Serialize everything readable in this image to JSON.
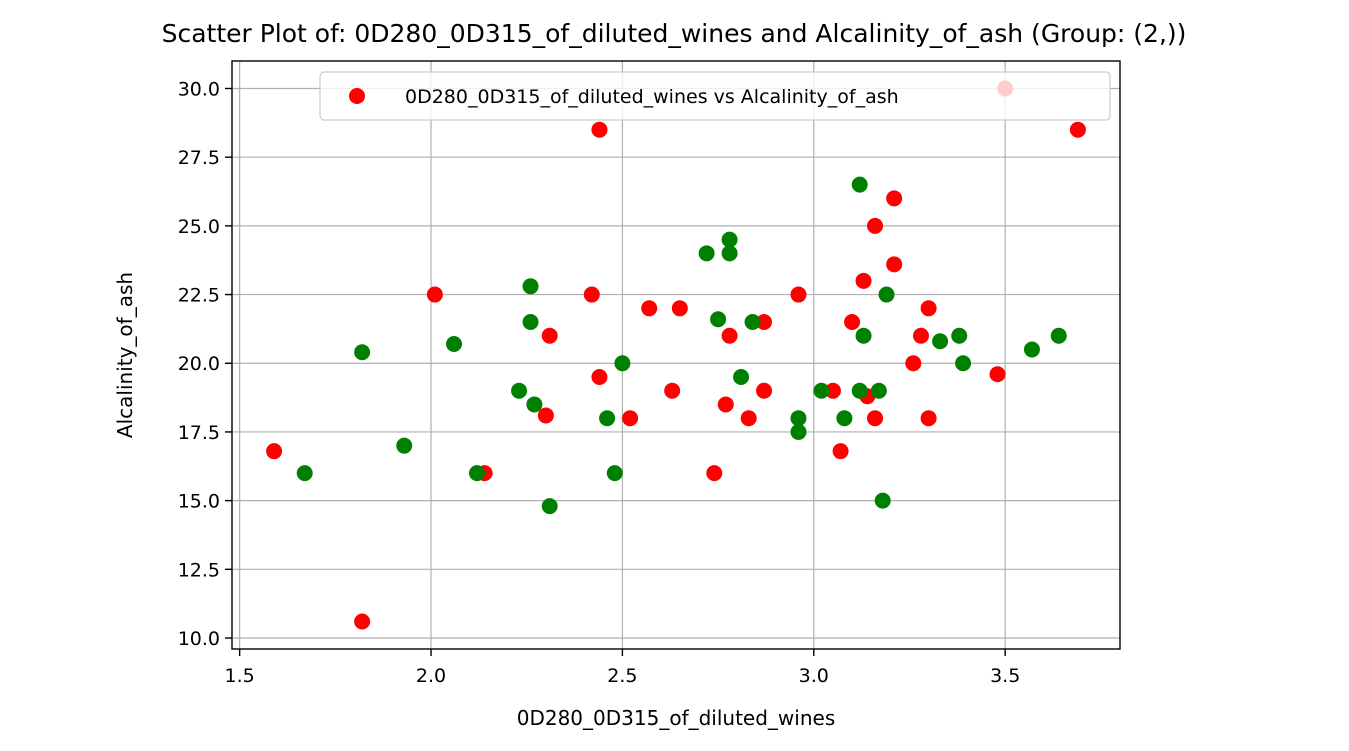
{
  "chart_data": {
    "type": "scatter",
    "title": "Scatter Plot of: 0D280_0D315_of_diluted_wines and Alcalinity_of_ash (Group: (2,))",
    "xlabel": "0D280_0D315_of_diluted_wines",
    "ylabel": "Alcalinity_of_ash",
    "xlim": [
      1.48,
      3.8
    ],
    "ylim": [
      9.6,
      31.0
    ],
    "xticks": [
      "1.5",
      "2.0",
      "2.5",
      "3.0",
      "3.5"
    ],
    "yticks": [
      "10.0",
      "12.5",
      "15.0",
      "17.5",
      "20.0",
      "22.5",
      "25.0",
      "27.5",
      "30.0"
    ],
    "grid": true,
    "legend_position": "upper right",
    "legend": [
      "0D280_0D315_of_diluted_wines vs Alcalinity_of_ash"
    ],
    "points": [
      {
        "x": 1.59,
        "y": 16.8,
        "color": "#ff0000"
      },
      {
        "x": 1.82,
        "y": 10.6,
        "color": "#ff0000"
      },
      {
        "x": 2.01,
        "y": 22.5,
        "color": "#ff0000"
      },
      {
        "x": 2.14,
        "y": 16.0,
        "color": "#ff0000"
      },
      {
        "x": 2.3,
        "y": 18.1,
        "color": "#ff0000"
      },
      {
        "x": 2.31,
        "y": 21.0,
        "color": "#ff0000"
      },
      {
        "x": 2.42,
        "y": 22.5,
        "color": "#ff0000"
      },
      {
        "x": 2.44,
        "y": 28.5,
        "color": "#ff0000"
      },
      {
        "x": 2.44,
        "y": 19.5,
        "color": "#ff0000"
      },
      {
        "x": 2.52,
        "y": 18.0,
        "color": "#ff0000"
      },
      {
        "x": 2.57,
        "y": 22.0,
        "color": "#ff0000"
      },
      {
        "x": 2.63,
        "y": 19.0,
        "color": "#ff0000"
      },
      {
        "x": 2.65,
        "y": 22.0,
        "color": "#ff0000"
      },
      {
        "x": 2.74,
        "y": 16.0,
        "color": "#ff0000"
      },
      {
        "x": 2.77,
        "y": 18.5,
        "color": "#ff0000"
      },
      {
        "x": 2.78,
        "y": 21.0,
        "color": "#ff0000"
      },
      {
        "x": 2.83,
        "y": 18.0,
        "color": "#ff0000"
      },
      {
        "x": 2.87,
        "y": 21.5,
        "color": "#ff0000"
      },
      {
        "x": 2.87,
        "y": 19.0,
        "color": "#ff0000"
      },
      {
        "x": 2.96,
        "y": 22.5,
        "color": "#ff0000"
      },
      {
        "x": 3.05,
        "y": 19.0,
        "color": "#ff0000"
      },
      {
        "x": 3.07,
        "y": 16.8,
        "color": "#ff0000"
      },
      {
        "x": 3.1,
        "y": 21.5,
        "color": "#ff0000"
      },
      {
        "x": 3.13,
        "y": 23.0,
        "color": "#ff0000"
      },
      {
        "x": 3.14,
        "y": 18.8,
        "color": "#ff0000"
      },
      {
        "x": 3.16,
        "y": 25.0,
        "color": "#ff0000"
      },
      {
        "x": 3.16,
        "y": 18.0,
        "color": "#ff0000"
      },
      {
        "x": 3.21,
        "y": 26.0,
        "color": "#ff0000"
      },
      {
        "x": 3.21,
        "y": 23.6,
        "color": "#ff0000"
      },
      {
        "x": 3.26,
        "y": 20.0,
        "color": "#ff0000"
      },
      {
        "x": 3.28,
        "y": 21.0,
        "color": "#ff0000"
      },
      {
        "x": 3.3,
        "y": 22.0,
        "color": "#ff0000"
      },
      {
        "x": 3.3,
        "y": 18.0,
        "color": "#ff0000"
      },
      {
        "x": 3.48,
        "y": 19.6,
        "color": "#ff0000"
      },
      {
        "x": 3.5,
        "y": 30.0,
        "color": "#ff0000"
      },
      {
        "x": 3.69,
        "y": 28.5,
        "color": "#ff0000"
      },
      {
        "x": 1.67,
        "y": 16.0,
        "color": "#008000"
      },
      {
        "x": 1.82,
        "y": 20.4,
        "color": "#008000"
      },
      {
        "x": 1.93,
        "y": 17.0,
        "color": "#008000"
      },
      {
        "x": 2.06,
        "y": 20.7,
        "color": "#008000"
      },
      {
        "x": 2.12,
        "y": 16.0,
        "color": "#008000"
      },
      {
        "x": 2.23,
        "y": 19.0,
        "color": "#008000"
      },
      {
        "x": 2.26,
        "y": 22.8,
        "color": "#008000"
      },
      {
        "x": 2.26,
        "y": 21.5,
        "color": "#008000"
      },
      {
        "x": 2.27,
        "y": 18.5,
        "color": "#008000"
      },
      {
        "x": 2.31,
        "y": 14.8,
        "color": "#008000"
      },
      {
        "x": 2.46,
        "y": 18.0,
        "color": "#008000"
      },
      {
        "x": 2.48,
        "y": 16.0,
        "color": "#008000"
      },
      {
        "x": 2.5,
        "y": 20.0,
        "color": "#008000"
      },
      {
        "x": 2.72,
        "y": 24.0,
        "color": "#008000"
      },
      {
        "x": 2.75,
        "y": 21.6,
        "color": "#008000"
      },
      {
        "x": 2.78,
        "y": 24.5,
        "color": "#008000"
      },
      {
        "x": 2.78,
        "y": 24.0,
        "color": "#008000"
      },
      {
        "x": 2.81,
        "y": 19.5,
        "color": "#008000"
      },
      {
        "x": 2.84,
        "y": 21.5,
        "color": "#008000"
      },
      {
        "x": 2.96,
        "y": 18.0,
        "color": "#008000"
      },
      {
        "x": 2.96,
        "y": 17.5,
        "color": "#008000"
      },
      {
        "x": 3.02,
        "y": 19.0,
        "color": "#008000"
      },
      {
        "x": 3.08,
        "y": 18.0,
        "color": "#008000"
      },
      {
        "x": 3.12,
        "y": 26.5,
        "color": "#008000"
      },
      {
        "x": 3.12,
        "y": 19.0,
        "color": "#008000"
      },
      {
        "x": 3.13,
        "y": 21.0,
        "color": "#008000"
      },
      {
        "x": 3.17,
        "y": 19.0,
        "color": "#008000"
      },
      {
        "x": 3.18,
        "y": 15.0,
        "color": "#008000"
      },
      {
        "x": 3.19,
        "y": 22.5,
        "color": "#008000"
      },
      {
        "x": 3.33,
        "y": 20.8,
        "color": "#008000"
      },
      {
        "x": 3.38,
        "y": 21.0,
        "color": "#008000"
      },
      {
        "x": 3.39,
        "y": 20.0,
        "color": "#008000"
      },
      {
        "x": 3.57,
        "y": 20.5,
        "color": "#008000"
      },
      {
        "x": 3.64,
        "y": 21.0,
        "color": "#008000"
      }
    ]
  }
}
